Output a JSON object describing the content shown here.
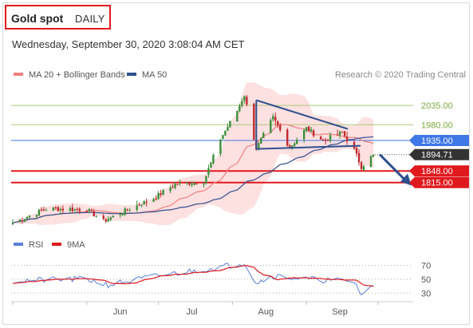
{
  "header": {
    "instrument": "Gold spot",
    "period": "DAILY",
    "timestamp": "Wednesday, September 30, 2020 3:08:04 AM CET"
  },
  "legend": {
    "items": [
      {
        "label": "MA 20 + Bollinger Bands",
        "color": "#f08080"
      },
      {
        "label": "MA 50",
        "color": "#2e4f8e"
      }
    ],
    "credit": "Research © 2020 Trading Central"
  },
  "rsi_legend": {
    "items": [
      {
        "label": "RSI",
        "color": "#5b7fd6"
      },
      {
        "label": "9MA",
        "color": "#e0191e"
      }
    ]
  },
  "colors": {
    "candle_up": "#3a8f3a",
    "candle_down": "#c0282d",
    "bollinger_fill": "#fcd6d6",
    "ma20": "#f08080",
    "ma50": "#2e4f8e",
    "trendline": "#2e4f8e",
    "level_green": "#a8c878",
    "level_blue": "#3e77e6",
    "level_red": "#e0191e",
    "price_tag": "#333333"
  },
  "chart_data": [
    {
      "type": "candlestick",
      "title": "Gold spot",
      "x_tick_labels": [
        "Jun",
        "Jul",
        "Aug",
        "Sep"
      ],
      "ylim": [
        1680,
        2090
      ],
      "levels": [
        {
          "value": 2035.0,
          "label": "2035.00",
          "kind": "resistance",
          "color": "#a8c878"
        },
        {
          "value": 1980.0,
          "label": "1980.00",
          "kind": "resistance",
          "color": "#a8c878"
        },
        {
          "value": 1935.0,
          "label": "1935.00",
          "kind": "pivot",
          "color": "#3e77e6"
        },
        {
          "value": 1848.0,
          "label": "1848.00",
          "kind": "support",
          "color": "#e0191e"
        },
        {
          "value": 1815.0,
          "label": "1815.00",
          "kind": "support",
          "color": "#e0191e"
        }
      ],
      "last_price": {
        "value": 1894.71,
        "label": "1894.71"
      },
      "close_path": [
        {
          "date": "2020-05-01",
          "close": 1700
        },
        {
          "date": "2020-05-15",
          "close": 1740
        },
        {
          "date": "2020-06-01",
          "close": 1738
        },
        {
          "date": "2020-06-08",
          "close": 1705
        },
        {
          "date": "2020-06-15",
          "close": 1728
        },
        {
          "date": "2020-06-29",
          "close": 1770
        },
        {
          "date": "2020-07-08",
          "close": 1810
        },
        {
          "date": "2020-07-20",
          "close": 1818
        },
        {
          "date": "2020-07-27",
          "close": 1940
        },
        {
          "date": "2020-08-03",
          "close": 2020
        },
        {
          "date": "2020-08-06",
          "close": 2065
        },
        {
          "date": "2020-08-11",
          "close": 1912
        },
        {
          "date": "2020-08-18",
          "close": 2000
        },
        {
          "date": "2020-08-25",
          "close": 1915
        },
        {
          "date": "2020-09-01",
          "close": 1970
        },
        {
          "date": "2020-09-08",
          "close": 1935
        },
        {
          "date": "2020-09-16",
          "close": 1958
        },
        {
          "date": "2020-09-21",
          "close": 1908
        },
        {
          "date": "2020-09-24",
          "close": 1860
        },
        {
          "date": "2020-09-29",
          "close": 1894.71
        }
      ],
      "patterns": [
        {
          "kind": "triangle",
          "from": "2020-08-11",
          "to": "2020-09-21"
        },
        {
          "kind": "projection-arrow",
          "toward": 1815.0
        }
      ]
    },
    {
      "type": "line",
      "title": "RSI",
      "series": [
        {
          "name": "RSI"
        },
        {
          "name": "9MA"
        }
      ],
      "y_tick_labels": [
        "70",
        "50",
        "30"
      ],
      "y_ticks": [
        70,
        50,
        30
      ],
      "ylim": [
        20,
        82
      ],
      "rsi_path": [
        {
          "date": "2020-05-01",
          "rsi": 48
        },
        {
          "date": "2020-06-01",
          "rsi": 50
        },
        {
          "date": "2020-06-10",
          "rsi": 42
        },
        {
          "date": "2020-07-01",
          "rsi": 55
        },
        {
          "date": "2020-07-28",
          "rsi": 68
        },
        {
          "date": "2020-08-06",
          "rsi": 74
        },
        {
          "date": "2020-08-11",
          "rsi": 45
        },
        {
          "date": "2020-08-18",
          "rsi": 55
        },
        {
          "date": "2020-09-01",
          "rsi": 50
        },
        {
          "date": "2020-09-21",
          "rsi": 47
        },
        {
          "date": "2020-09-24",
          "rsi": 28
        },
        {
          "date": "2020-09-29",
          "rsi": 40
        }
      ]
    }
  ]
}
